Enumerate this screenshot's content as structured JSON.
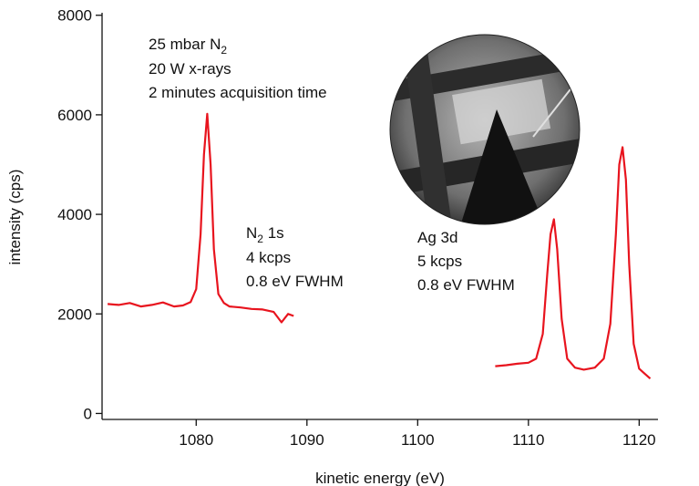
{
  "chart_data": {
    "type": "line",
    "xlabel": "kinetic energy (eV)",
    "ylabel": "intensity (cps)",
    "xlim": [
      1071.5,
      1121.7
    ],
    "ylim": [
      -120,
      8050
    ],
    "x_ticks": [
      1080,
      1090,
      1100,
      1110,
      1120
    ],
    "y_ticks": [
      0,
      2000,
      4000,
      6000,
      8000
    ],
    "x_tick_labels": [
      "1080",
      "1090",
      "1100",
      "1110",
      "1120"
    ],
    "y_tick_labels": [
      "0",
      "2000",
      "4000",
      "6000",
      "8000"
    ],
    "line_color": "#e8141e",
    "series": [
      {
        "x": [
          1072,
          1073,
          1074,
          1075,
          1076,
          1077,
          1078,
          1078.8,
          1079.5,
          1080.0,
          1080.4,
          1080.7,
          1081.0,
          1081.3,
          1081.6,
          1082.0,
          1082.5,
          1083,
          1084,
          1085,
          1086,
          1087,
          1087.7,
          1088.3,
          1088.8
        ],
        "y": [
          2200,
          2180,
          2220,
          2150,
          2180,
          2230,
          2150,
          2170,
          2240,
          2500,
          3600,
          5200,
          6020,
          5000,
          3300,
          2400,
          2220,
          2150,
          2130,
          2100,
          2090,
          2040,
          1830,
          2000,
          1960
        ]
      },
      {
        "x": [
          1107,
          1108,
          1109,
          1110,
          1110.7,
          1111.3,
          1111.7,
          1112.0,
          1112.3,
          1112.6,
          1113.0,
          1113.5,
          1114.2,
          1115,
          1116,
          1116.8,
          1117.4,
          1117.9,
          1118.2,
          1118.5,
          1118.8,
          1119.1,
          1119.5,
          1120.0,
          1120.5,
          1121.0
        ],
        "y": [
          950,
          970,
          1000,
          1020,
          1100,
          1600,
          2800,
          3600,
          3900,
          3300,
          1900,
          1100,
          920,
          880,
          920,
          1100,
          1800,
          3600,
          5000,
          5350,
          4700,
          3000,
          1400,
          900,
          800,
          700
        ]
      }
    ]
  },
  "annotations": {
    "conditions_line1": "25 mbar N",
    "conditions_line1_sub": "2",
    "conditions_line2": "20 W x-rays",
    "conditions_line3": "2 minutes acquisition time",
    "n2_title": "N",
    "n2_title_sub": "2",
    "n2_title_rest": " 1s",
    "n2_rate": "4 kcps",
    "n2_fwhm": "0.8 eV FWHM",
    "ag_title": "Ag 3d",
    "ag_rate": "5 kcps",
    "ag_fwhm": "0.8 eV FWHM"
  }
}
